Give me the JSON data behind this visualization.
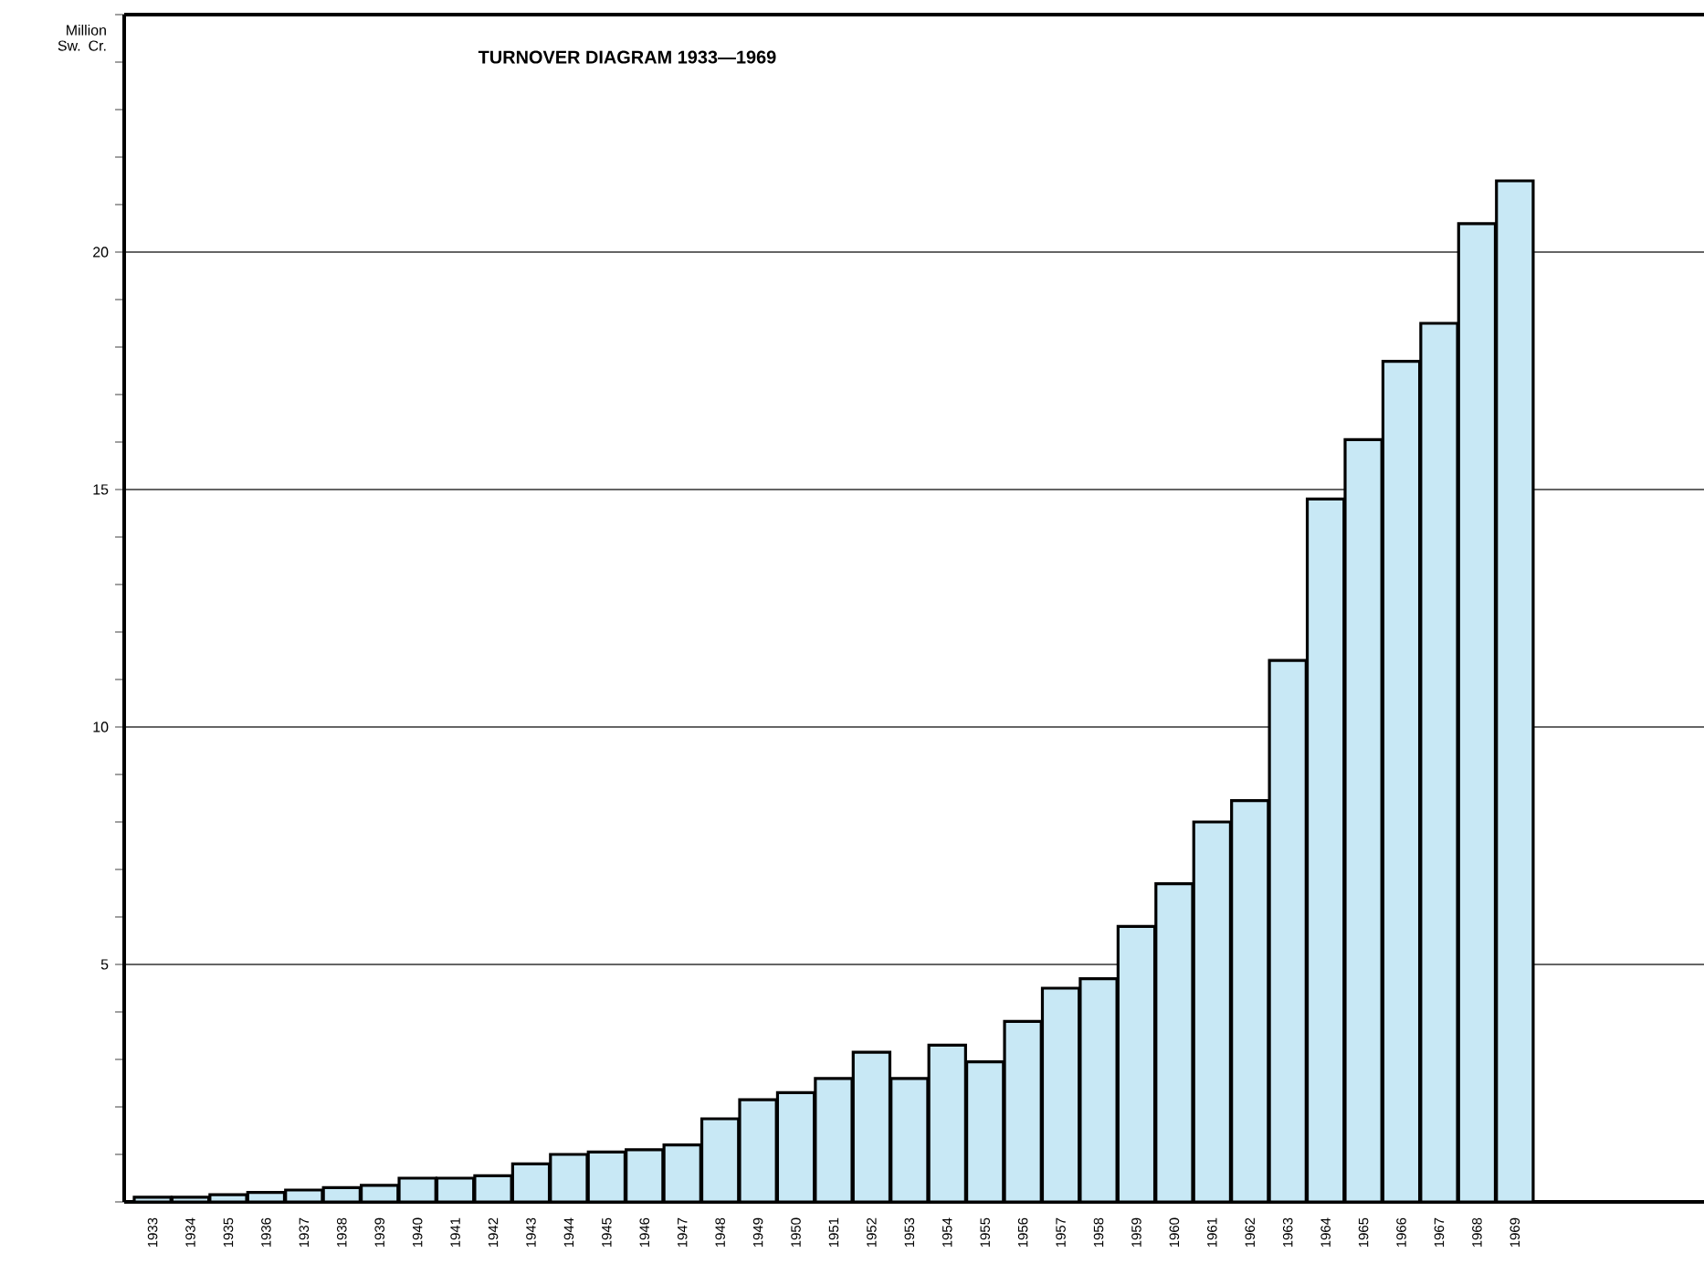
{
  "chart_data": {
    "type": "bar",
    "title": "TURNOVER DIAGRAM 1933—1969",
    "ylabel": "Million Sw. Cr.",
    "categories": [
      "1933",
      "1934",
      "1935",
      "1936",
      "1937",
      "1938",
      "1939",
      "1940",
      "1941",
      "1942",
      "1943",
      "1944",
      "1945",
      "1946",
      "1947",
      "1948",
      "1949",
      "1950",
      "1951",
      "1952",
      "1953",
      "1954",
      "1955",
      "1956",
      "1957",
      "1958",
      "1959",
      "1960",
      "1961",
      "1962",
      "1963",
      "1964",
      "1965",
      "1966",
      "1967",
      "1968",
      "1969"
    ],
    "values": [
      0.1,
      0.1,
      0.15,
      0.2,
      0.25,
      0.3,
      0.35,
      0.5,
      0.5,
      0.55,
      0.8,
      1.0,
      1.05,
      1.1,
      1.2,
      1.75,
      2.15,
      2.3,
      2.6,
      3.15,
      2.6,
      3.3,
      2.95,
      3.8,
      4.5,
      4.7,
      5.8,
      6.7,
      8.0,
      8.45,
      11.4,
      14.8,
      16.05,
      17.7,
      18.5,
      20.6,
      21.5
    ],
    "color": "#c8e8f5",
    "ylim": [
      0,
      25
    ],
    "yticks": [
      {
        "value": 0,
        "label": null
      },
      {
        "value": 1,
        "label": null
      },
      {
        "value": 2,
        "label": null
      },
      {
        "value": 3,
        "label": null
      },
      {
        "value": 4,
        "label": null
      },
      5,
      {
        "value": 6,
        "label": null
      },
      {
        "value": 7,
        "label": null
      },
      {
        "value": 8,
        "label": null
      },
      {
        "value": 9,
        "label": null
      },
      10,
      {
        "value": 11,
        "label": null
      },
      {
        "value": 12,
        "label": null
      },
      {
        "value": 13,
        "label": null
      },
      {
        "value": 14,
        "label": null
      },
      15,
      {
        "value": 16,
        "label": null
      },
      {
        "value": 17,
        "label": null
      },
      {
        "value": 18,
        "label": null
      },
      {
        "value": 19,
        "label": null
      },
      20,
      {
        "value": 21,
        "label": null
      },
      {
        "value": 22,
        "label": null
      },
      {
        "value": 23,
        "label": null
      },
      {
        "value": 24,
        "label": null
      },
      {
        "value": 25,
        "label": null
      }
    ],
    "grid": "y"
  }
}
